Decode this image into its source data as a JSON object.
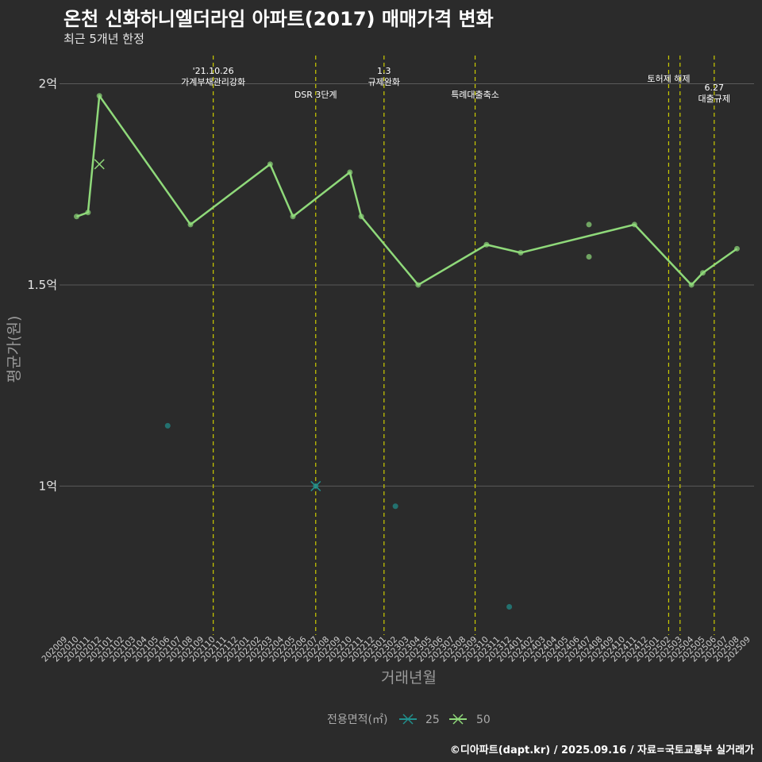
{
  "title": "온천 신화하니엘더라임 아파트(2017) 매매가격 변화",
  "subtitle": "최근 5개년 한정",
  "caption": "©디아파트(dapt.kr) / 2025.09.16 / 자료=국토교통부 실거래가",
  "colors": {
    "background": "#2b2b2b",
    "grid": "#5a5a5a",
    "event_line": "#cccc00",
    "series_25": "#21908d",
    "series_50": "#8fd97a"
  },
  "chart_data": {
    "type": "line",
    "xlabel": "거래년월",
    "ylabel": "평균가(원)",
    "ylim": [
      0.63,
      2.07
    ],
    "y_ticks": [
      {
        "value": 1.0,
        "label": "1억"
      },
      {
        "value": 1.5,
        "label": "1.5억"
      },
      {
        "value": 2.0,
        "label": "2억"
      }
    ],
    "x_categories": [
      "202009",
      "202010",
      "202011",
      "202012",
      "202101",
      "202102",
      "202103",
      "202104",
      "202105",
      "202106",
      "202107",
      "202108",
      "202109",
      "202110",
      "202111",
      "202112",
      "202201",
      "202202",
      "202203",
      "202204",
      "202205",
      "202206",
      "202207",
      "202208",
      "202209",
      "202210",
      "202211",
      "202212",
      "202301",
      "202302",
      "202303",
      "202304",
      "202305",
      "202306",
      "202307",
      "202308",
      "202309",
      "202310",
      "202311",
      "202312",
      "202401",
      "202402",
      "202403",
      "202404",
      "202405",
      "202406",
      "202407",
      "202408",
      "202409",
      "202410",
      "202411",
      "202412",
      "202501",
      "202502",
      "202503",
      "202504",
      "202505",
      "202506",
      "202507",
      "202508",
      "202509"
    ],
    "legend_title": "전용면적(㎡)",
    "series": [
      {
        "name": "25",
        "color": "#21908d",
        "line": [],
        "points": [
          {
            "x": "202106",
            "y": 1.15
          },
          {
            "x": "202207",
            "y": 1.0
          },
          {
            "x": "202302",
            "y": 0.95
          },
          {
            "x": "202312",
            "y": 0.7
          }
        ],
        "cross": [
          {
            "x": "202207",
            "y": 1.0
          }
        ]
      },
      {
        "name": "50",
        "color": "#8fd97a",
        "line": [
          {
            "x": "202010",
            "y": 1.67
          },
          {
            "x": "202011",
            "y": 1.68
          },
          {
            "x": "202012",
            "y": 1.97
          },
          {
            "x": "202108",
            "y": 1.65
          },
          {
            "x": "202203",
            "y": 1.8
          },
          {
            "x": "202205",
            "y": 1.67
          },
          {
            "x": "202210",
            "y": 1.78
          },
          {
            "x": "202211",
            "y": 1.67
          },
          {
            "x": "202304",
            "y": 1.5
          },
          {
            "x": "202310",
            "y": 1.6
          },
          {
            "x": "202401",
            "y": 1.58
          },
          {
            "x": "202411",
            "y": 1.65
          },
          {
            "x": "202504",
            "y": 1.5
          },
          {
            "x": "202505",
            "y": 1.53
          },
          {
            "x": "202508",
            "y": 1.59
          }
        ],
        "points": [
          {
            "x": "202010",
            "y": 1.67
          },
          {
            "x": "202011",
            "y": 1.68
          },
          {
            "x": "202012",
            "y": 1.97
          },
          {
            "x": "202108",
            "y": 1.65
          },
          {
            "x": "202203",
            "y": 1.8
          },
          {
            "x": "202205",
            "y": 1.67
          },
          {
            "x": "202210",
            "y": 1.78
          },
          {
            "x": "202211",
            "y": 1.67
          },
          {
            "x": "202304",
            "y": 1.5
          },
          {
            "x": "202310",
            "y": 1.6
          },
          {
            "x": "202401",
            "y": 1.58
          },
          {
            "x": "202407",
            "y": 1.65
          },
          {
            "x": "202407",
            "y": 1.57
          },
          {
            "x": "202411",
            "y": 1.65
          },
          {
            "x": "202504",
            "y": 1.5
          },
          {
            "x": "202505",
            "y": 1.53
          },
          {
            "x": "202508",
            "y": 1.59
          }
        ],
        "cross": [
          {
            "x": "202012",
            "y": 1.8
          }
        ]
      }
    ],
    "events": [
      {
        "x": "202110",
        "lines": [
          "'21.10.26",
          "가계부채관리강화"
        ],
        "row": "top"
      },
      {
        "x": "202207",
        "lines": [
          "DSR 3단계"
        ],
        "row": "low"
      },
      {
        "x": "202301",
        "lines": [
          "1.3",
          "규제완화"
        ],
        "row": "top"
      },
      {
        "x": "202309",
        "lines": [
          "특례대출축소"
        ],
        "row": "low"
      },
      {
        "x": "202502",
        "lines": [
          "토허제 해제"
        ],
        "row": "mid"
      },
      {
        "x": "202503",
        "lines": [],
        "row": "mid"
      },
      {
        "x": "202506",
        "lines": [
          "6.27",
          "대출규제"
        ],
        "row": "right"
      }
    ]
  }
}
